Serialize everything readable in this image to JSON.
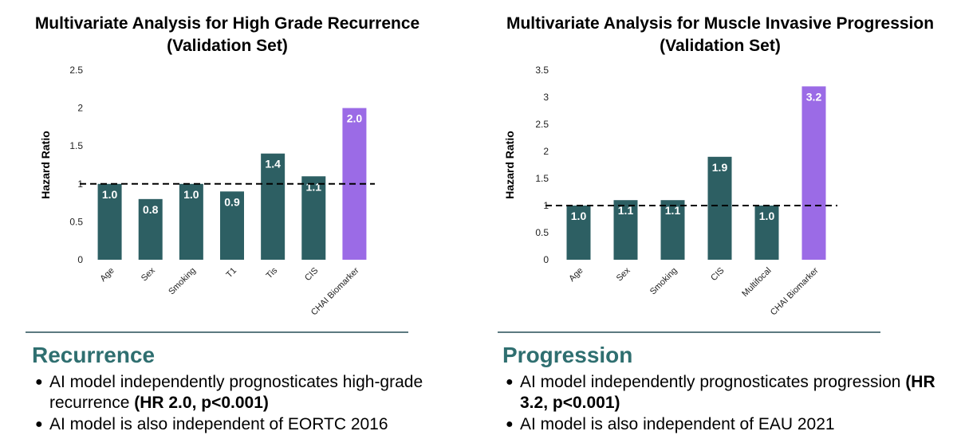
{
  "colors": {
    "bar": "#2d5f63",
    "highlight": "#9b6be6",
    "section": "#2f6f70",
    "divider": "#5c7a80"
  },
  "chart_data": [
    {
      "type": "bar",
      "title_lines": [
        "Multivariate Analysis for High Grade Recurrence",
        "(Validation Set)"
      ],
      "ylabel": "Hazard Ratio",
      "xlabel": "",
      "ylim": [
        0,
        2.5
      ],
      "yticks": [
        "0",
        "0.5",
        "1",
        "1.5",
        "2",
        "2.5"
      ],
      "reference_line": 1,
      "categories": [
        "Age",
        "Sex",
        "Smoking",
        "T1",
        "Tis",
        "CIS",
        "CHAI Biomarker"
      ],
      "values": [
        1.0,
        0.8,
        1.0,
        0.9,
        1.4,
        1.1,
        2.0
      ],
      "labels": [
        "1.0",
        "0.8",
        "1.0",
        "0.9",
        "1.4",
        "1.1",
        "2.0"
      ],
      "highlight_index": 6,
      "grid": false
    },
    {
      "type": "bar",
      "title_lines": [
        "Multivariate Analysis for Muscle Invasive Progression",
        "(Validation Set)"
      ],
      "ylabel": "Hazard Ratio",
      "xlabel": "",
      "ylim": [
        0,
        3.5
      ],
      "yticks": [
        "0",
        "0.5",
        "1",
        "1.5",
        "2",
        "2.5",
        "3",
        "3.5"
      ],
      "reference_line": 1,
      "categories": [
        "Age",
        "Sex",
        "Smoking",
        "CIS",
        "Multifocal",
        "CHAI Biomarker"
      ],
      "values": [
        1.0,
        1.1,
        1.1,
        1.9,
        1.0,
        3.2
      ],
      "labels": [
        "1.0",
        "1.1",
        "1.1",
        "1.9",
        "1.0",
        "3.2"
      ],
      "highlight_index": 5,
      "grid": false
    }
  ],
  "sections": [
    {
      "heading": "Recurrence",
      "bullet1_text": "AI model independently prognosticates high-grade recurrence ",
      "bullet1_bold": "(HR 2.0, p<0.001)",
      "bullet2_text": "AI model is also independent of EORTC 2016"
    },
    {
      "heading": "Progression",
      "bullet1_text": "AI model independently prognosticates progression ",
      "bullet1_bold": "(HR 3.2, p<0.001)",
      "bullet2_text": "AI model is also independent of EAU 2021"
    }
  ]
}
